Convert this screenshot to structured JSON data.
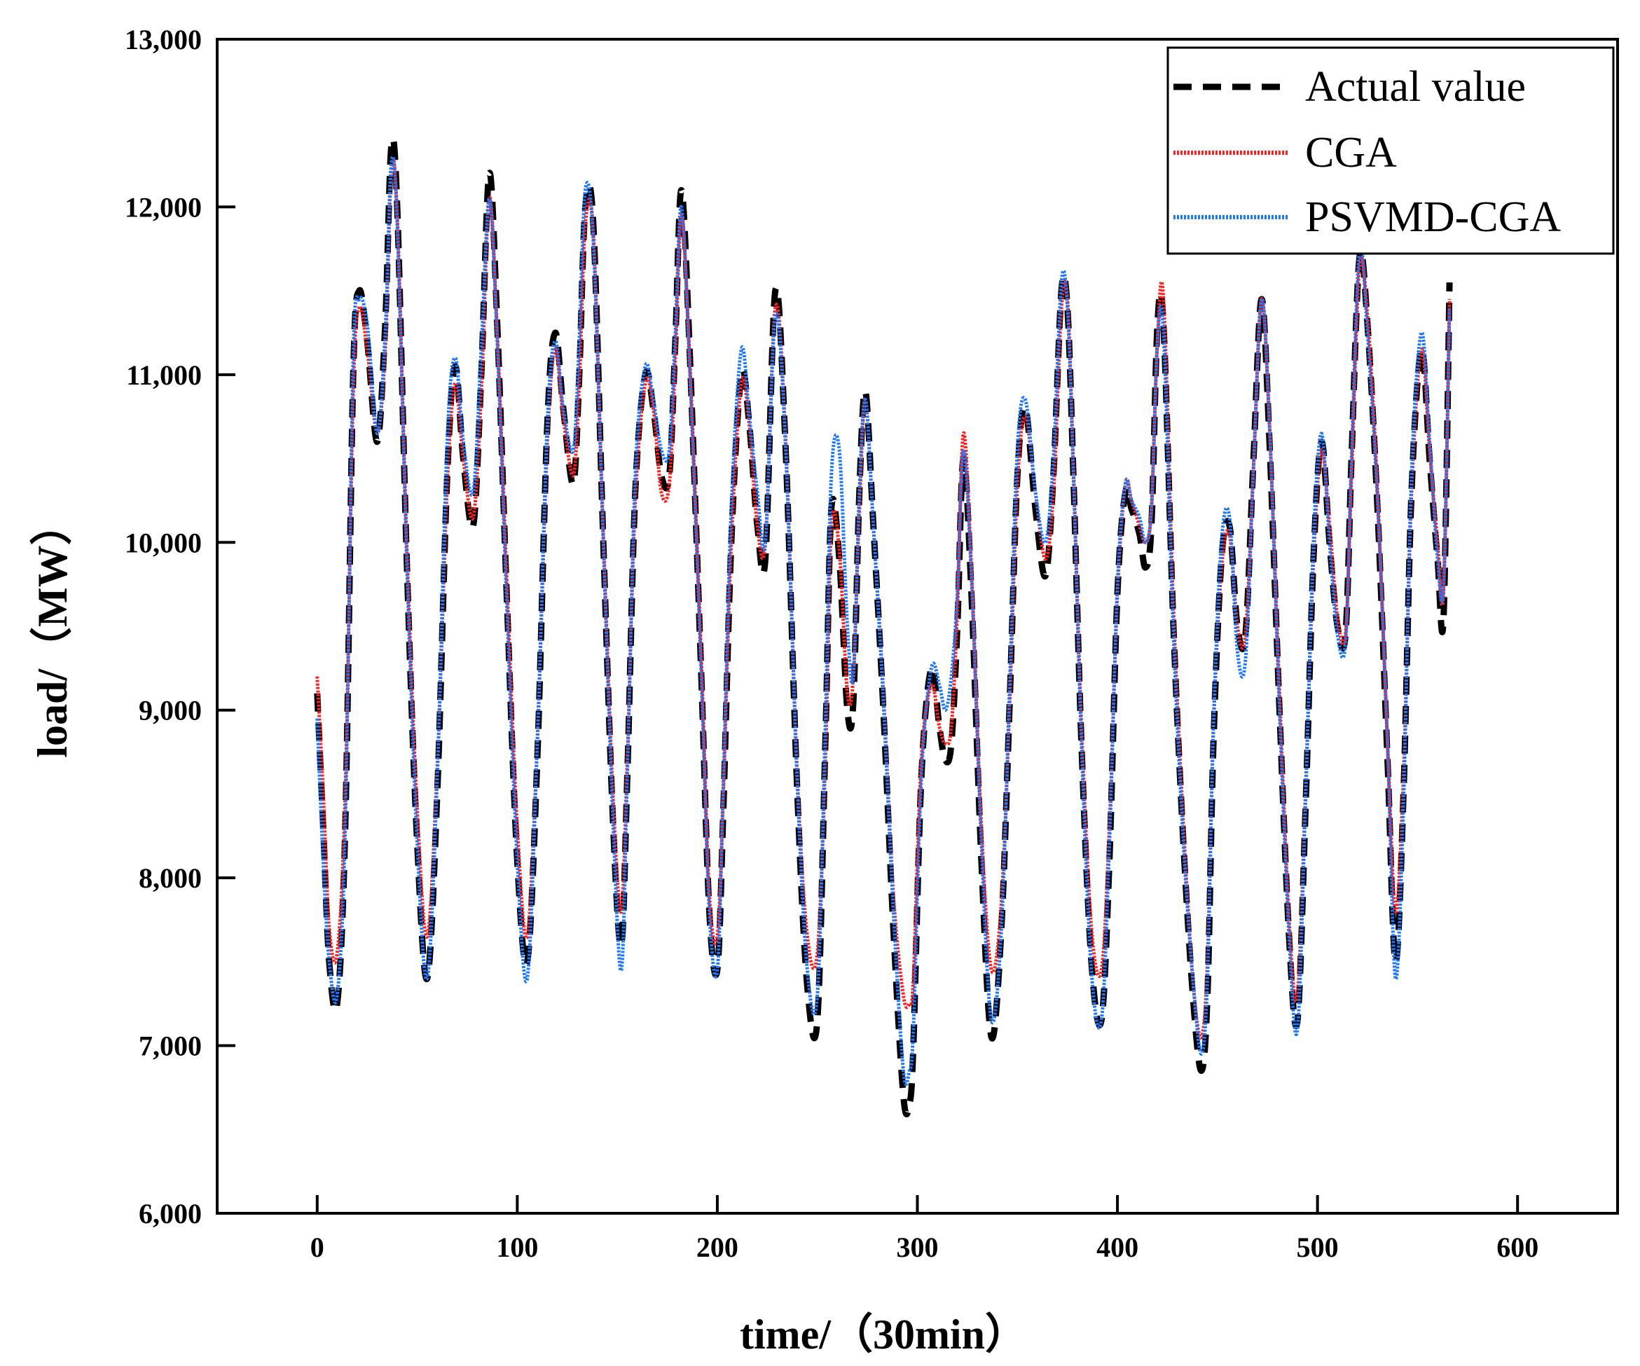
{
  "chart_data": {
    "type": "line",
    "title": "",
    "xlabel": "time/（30min）",
    "ylabel": "load/（MW）",
    "xlim": [
      -50,
      650
    ],
    "ylim": [
      6000,
      13000
    ],
    "xticks": [
      0,
      100,
      200,
      300,
      400,
      500,
      600
    ],
    "xtick_labels": [
      "0",
      "100",
      "200",
      "300",
      "400",
      "500",
      "600"
    ],
    "yticks": [
      6000,
      7000,
      8000,
      9000,
      10000,
      11000,
      12000,
      13000
    ],
    "ytick_labels": [
      "6,000",
      "7,000",
      "8,000",
      "9,000",
      "10,000",
      "11,000",
      "12,000",
      "13,000"
    ],
    "grid": false,
    "legend_position": "top-right",
    "x": [
      0,
      3,
      6,
      10,
      14,
      18,
      21,
      25,
      30,
      34,
      37,
      40,
      45,
      50,
      55,
      60,
      65,
      69,
      73,
      78,
      82,
      86,
      90,
      95,
      100,
      105,
      110,
      115,
      119,
      123,
      128,
      131,
      134,
      138,
      143,
      148,
      152,
      155,
      159,
      164,
      168,
      172,
      176,
      179,
      182,
      186,
      192,
      196,
      200,
      203,
      207,
      212,
      216,
      220,
      224,
      229,
      234,
      240,
      245,
      250,
      254,
      257,
      261,
      265,
      268,
      271,
      274,
      278,
      283,
      288,
      293,
      296,
      298,
      302,
      307,
      311,
      314,
      317,
      320,
      323,
      327,
      332,
      337,
      342,
      346,
      350,
      354,
      359,
      364,
      368,
      372,
      375,
      378,
      382,
      387,
      392,
      396,
      400,
      404,
      407,
      411,
      414,
      417,
      420,
      423,
      428,
      433,
      438,
      442,
      445,
      448,
      452,
      456,
      460,
      464,
      468,
      472,
      476,
      481,
      486,
      490,
      494,
      498,
      502,
      506,
      510,
      514,
      517,
      521,
      525,
      530,
      535,
      539,
      543,
      547,
      552,
      556,
      560,
      563,
      566
    ],
    "series": [
      {
        "name": "Actual value",
        "color": "#000000",
        "values": [
          9100,
          8300,
          7500,
          7250,
          8300,
          11000,
          11500,
          11200,
          10600,
          11300,
          12350,
          12000,
          9800,
          8200,
          7400,
          8500,
          10400,
          11050,
          10500,
          10100,
          11000,
          12200,
          11300,
          9600,
          8100,
          7500,
          8700,
          10700,
          11250,
          10800,
          10350,
          11000,
          12000,
          11900,
          10000,
          8300,
          7600,
          8600,
          10300,
          11000,
          10800,
          10400,
          10400,
          11200,
          12100,
          11200,
          9200,
          7800,
          7450,
          8400,
          10000,
          11000,
          10700,
          10100,
          9900,
          11500,
          10600,
          8500,
          7350,
          7150,
          8800,
          10200,
          9900,
          9000,
          9050,
          10300,
          10900,
          10100,
          9000,
          7700,
          6700,
          6650,
          7000,
          8600,
          9250,
          8900,
          8700,
          8800,
          9500,
          10500,
          9700,
          8100,
          7050,
          7700,
          9000,
          10400,
          10800,
          10200,
          9800,
          10400,
          11500,
          11400,
          10400,
          8800,
          7500,
          7150,
          8100,
          9700,
          10300,
          10200,
          10050,
          9850,
          10100,
          11300,
          11300,
          9500,
          8200,
          7250,
          6850,
          7300,
          8800,
          9900,
          10100,
          9500,
          9450,
          10500,
          11450,
          10600,
          9000,
          7600,
          7150,
          8400,
          9900,
          10600,
          10000,
          9500,
          9450,
          10500,
          11700,
          11300,
          10200,
          8700,
          7500,
          8500,
          10300,
          11150,
          10500,
          9900,
          9550,
          11550
        ]
      },
      {
        "name": "CGA",
        "color": "#ff1f1f",
        "values": [
          9200,
          8500,
          7700,
          7550,
          8500,
          10900,
          11400,
          11150,
          10650,
          11150,
          12200,
          11950,
          9900,
          8400,
          7650,
          8650,
          10350,
          10950,
          10500,
          10150,
          10900,
          12050,
          11250,
          9700,
          8300,
          7650,
          8800,
          10600,
          11150,
          10750,
          10400,
          10950,
          11900,
          11850,
          10050,
          8450,
          7800,
          8700,
          10250,
          10950,
          10800,
          10300,
          10350,
          11100,
          11950,
          11150,
          9300,
          7900,
          7650,
          8500,
          10000,
          10950,
          10700,
          10100,
          10000,
          11400,
          10650,
          8600,
          7650,
          7550,
          8700,
          10100,
          9950,
          9100,
          9200,
          10200,
          10850,
          10100,
          9100,
          7900,
          7300,
          7250,
          7400,
          8700,
          9150,
          8900,
          8800,
          8900,
          9600,
          10650,
          9850,
          8300,
          7450,
          7850,
          9000,
          10350,
          10750,
          10300,
          9900,
          10300,
          11400,
          11450,
          10450,
          8900,
          7700,
          7450,
          8300,
          9700,
          10350,
          10250,
          10100,
          10000,
          10200,
          11200,
          11450,
          9600,
          8300,
          7350,
          7050,
          7500,
          8900,
          9850,
          10050,
          9500,
          9450,
          10450,
          11450,
          10700,
          9100,
          7700,
          7300,
          8500,
          9900,
          10550,
          10100,
          9550,
          9450,
          10400,
          11650,
          11350,
          10300,
          8800,
          7800,
          8600,
          10300,
          11150,
          10550,
          10000,
          9700,
          11450
        ]
      },
      {
        "name": "PSVMD-CGA",
        "color": "#1e78ff",
        "values": [
          8950,
          8100,
          7500,
          7300,
          8300,
          11100,
          11450,
          11300,
          10650,
          11250,
          12250,
          11900,
          9800,
          8200,
          7400,
          8600,
          10600,
          11100,
          10600,
          10300,
          11150,
          12050,
          11200,
          9550,
          8100,
          7400,
          8800,
          10700,
          11200,
          10800,
          10550,
          11200,
          12100,
          11800,
          10000,
          8300,
          7450,
          8600,
          10400,
          11050,
          10850,
          10550,
          10550,
          11250,
          12000,
          11100,
          9200,
          7800,
          7450,
          8550,
          10200,
          11150,
          10750,
          10300,
          10000,
          11350,
          10600,
          8550,
          7450,
          7300,
          8900,
          10400,
          10550,
          9500,
          9200,
          10300,
          10850,
          10100,
          9050,
          7800,
          6850,
          6850,
          7100,
          8600,
          9250,
          9150,
          9000,
          9200,
          9700,
          10550,
          9800,
          8200,
          7150,
          7700,
          9100,
          10550,
          10850,
          10300,
          10000,
          10500,
          11550,
          11400,
          10400,
          8800,
          7450,
          7150,
          8200,
          9750,
          10350,
          10250,
          10150,
          10000,
          10200,
          11200,
          11250,
          9450,
          8200,
          7350,
          6950,
          7400,
          8900,
          10000,
          10150,
          9350,
          9300,
          10450,
          11450,
          10700,
          9000,
          7600,
          7100,
          8450,
          10000,
          10650,
          10000,
          9450,
          9400,
          10500,
          11750,
          11250,
          10250,
          8800,
          7400,
          8450,
          10400,
          11250,
          10600,
          9900,
          9750,
          11400
        ]
      }
    ]
  }
}
